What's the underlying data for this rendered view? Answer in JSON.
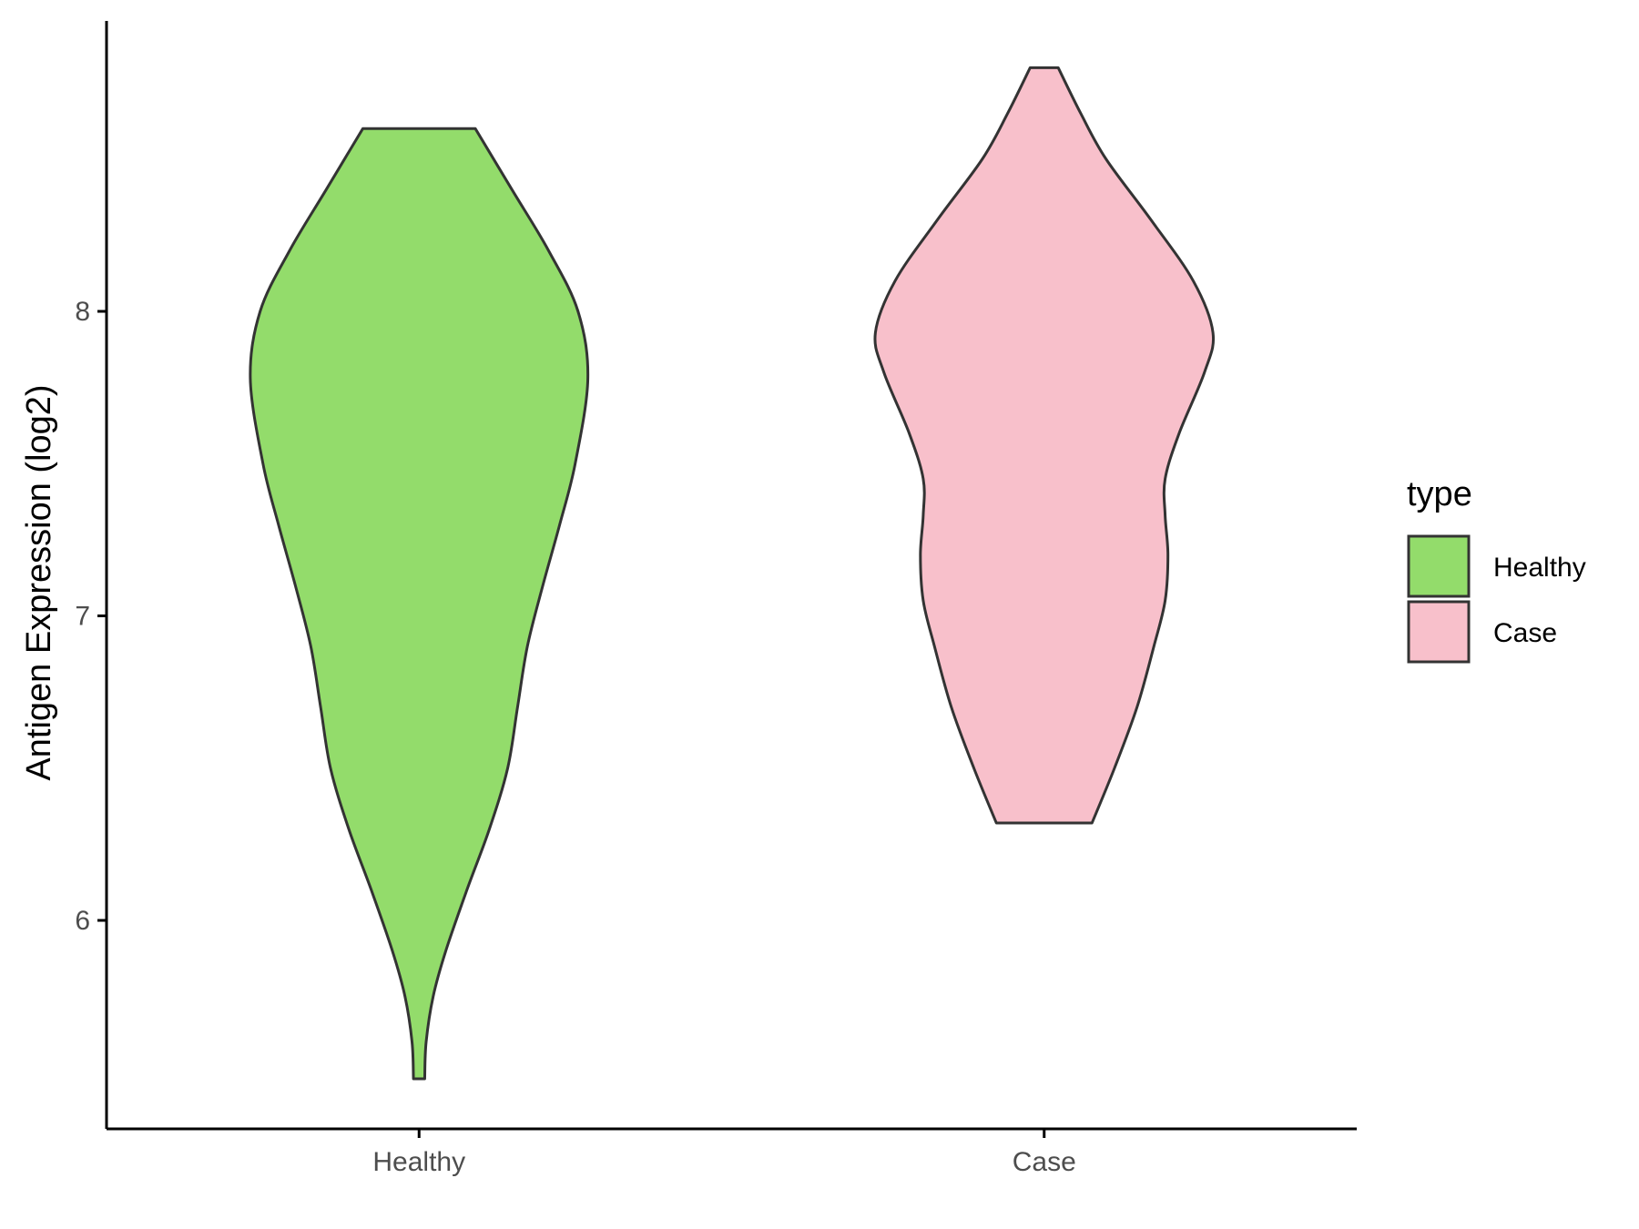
{
  "chart_data": {
    "type": "violin",
    "title": "",
    "xlabel": "",
    "ylabel": "Antigen Expression (log2)",
    "categories": [
      "Healthy",
      "Case"
    ],
    "y_ticks": [
      6,
      7,
      8
    ],
    "ylim": [
      5.3,
      8.95
    ],
    "grid": false,
    "legend": {
      "title": "type",
      "placement": "right",
      "entries": [
        {
          "label": "Healthy",
          "color": "#93dc6b"
        },
        {
          "label": "Case",
          "color": "#f8c0cb"
        }
      ]
    },
    "series": [
      {
        "category": "Healthy",
        "color": "#93dc6b",
        "min": 5.48,
        "max": 8.6,
        "profile": [
          [
            5.48,
            0.02
          ],
          [
            5.6,
            0.025
          ],
          [
            5.75,
            0.05
          ],
          [
            5.9,
            0.095
          ],
          [
            6.1,
            0.17
          ],
          [
            6.3,
            0.25
          ],
          [
            6.5,
            0.315
          ],
          [
            6.7,
            0.35
          ],
          [
            6.9,
            0.385
          ],
          [
            7.1,
            0.44
          ],
          [
            7.3,
            0.5
          ],
          [
            7.5,
            0.555
          ],
          [
            7.78,
            0.6
          ],
          [
            8.0,
            0.565
          ],
          [
            8.2,
            0.46
          ],
          [
            8.4,
            0.33
          ],
          [
            8.6,
            0.2
          ]
        ]
      },
      {
        "category": "Case",
        "color": "#f8c0cb",
        "min": 6.32,
        "max": 8.8,
        "profile": [
          [
            6.32,
            0.17
          ],
          [
            6.5,
            0.25
          ],
          [
            6.7,
            0.33
          ],
          [
            6.9,
            0.39
          ],
          [
            7.05,
            0.43
          ],
          [
            7.2,
            0.44
          ],
          [
            7.33,
            0.43
          ],
          [
            7.45,
            0.43
          ],
          [
            7.6,
            0.48
          ],
          [
            7.8,
            0.57
          ],
          [
            7.93,
            0.6
          ],
          [
            8.1,
            0.53
          ],
          [
            8.3,
            0.38
          ],
          [
            8.5,
            0.22
          ],
          [
            8.65,
            0.13
          ],
          [
            8.8,
            0.05
          ]
        ]
      }
    ]
  }
}
